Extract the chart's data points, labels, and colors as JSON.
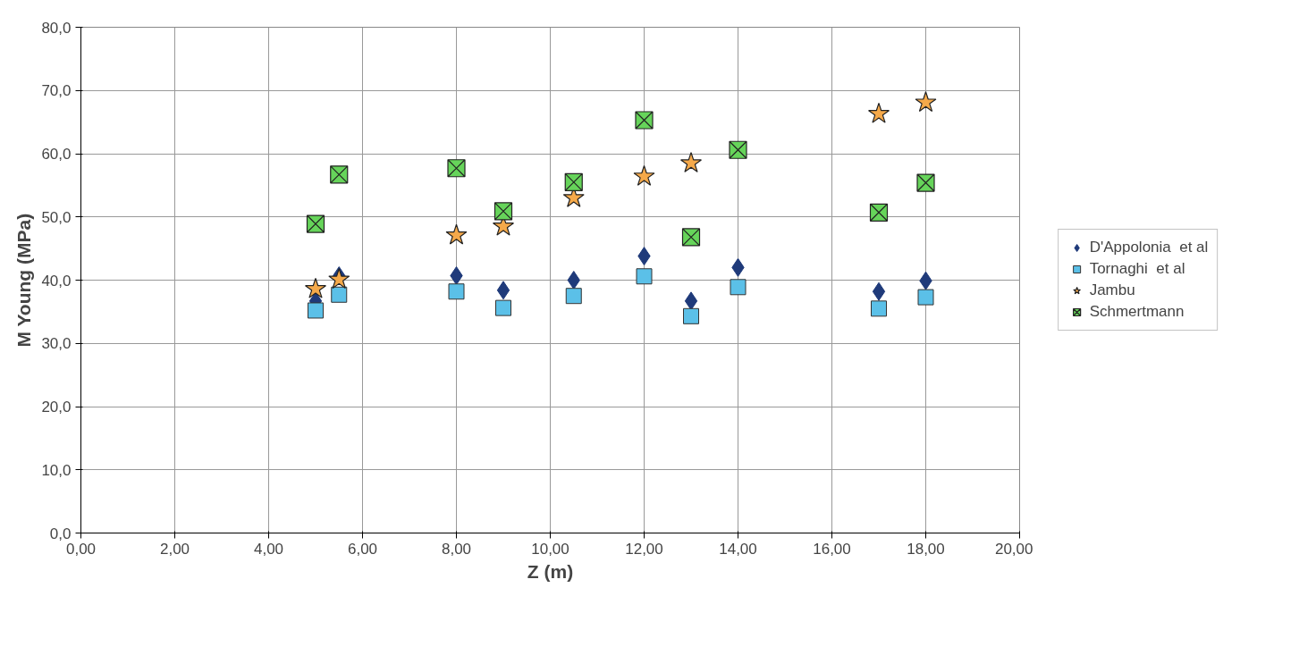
{
  "chart_data": {
    "type": "scatter",
    "xlabel": "Z (m)",
    "ylabel": "M Young (MPa)",
    "xlim": [
      0,
      20
    ],
    "ylim": [
      0,
      80
    ],
    "xticks": [
      {
        "value": 0,
        "label": "0,00"
      },
      {
        "value": 2,
        "label": "2,00"
      },
      {
        "value": 4,
        "label": "4,00"
      },
      {
        "value": 6,
        "label": "6,00"
      },
      {
        "value": 8,
        "label": "8,00"
      },
      {
        "value": 10,
        "label": "10,00"
      },
      {
        "value": 12,
        "label": "12,00"
      },
      {
        "value": 14,
        "label": "14,00"
      },
      {
        "value": 16,
        "label": "16,00"
      },
      {
        "value": 18,
        "label": "18,00"
      },
      {
        "value": 20,
        "label": "20,00"
      }
    ],
    "yticks": [
      {
        "value": 0,
        "label": "0,0"
      },
      {
        "value": 10,
        "label": "10,0"
      },
      {
        "value": 20,
        "label": "20,0"
      },
      {
        "value": 30,
        "label": "30,0"
      },
      {
        "value": 40,
        "label": "40,0"
      },
      {
        "value": 50,
        "label": "50,0"
      },
      {
        "value": 60,
        "label": "60,0"
      },
      {
        "value": 70,
        "label": "70,0"
      },
      {
        "value": 80,
        "label": "80,0"
      }
    ],
    "grid": true,
    "legend": "right",
    "series": [
      {
        "name": "D'Appolonia  et al",
        "color": "#1f3a7a",
        "marker": "diamond",
        "x": [
          5,
          5.5,
          8,
          9,
          10.5,
          12,
          13,
          14,
          17,
          18
        ],
        "values": [
          36.7,
          40.7,
          40.7,
          38.4,
          40.0,
          43.8,
          36.7,
          42.0,
          38.2,
          39.9
        ]
      },
      {
        "name": "Tornaghi  et al",
        "color": "#5bc0e8",
        "marker": "square",
        "x": [
          5,
          5.5,
          8,
          9,
          10.5,
          12,
          13,
          14,
          17,
          18
        ],
        "values": [
          35.2,
          37.7,
          38.2,
          35.6,
          37.5,
          40.6,
          34.3,
          38.9,
          35.5,
          37.3
        ]
      },
      {
        "name": "Jambu",
        "color": "#f5a94a",
        "marker": "star",
        "x": [
          5,
          5.5,
          8,
          9,
          10.5,
          12,
          13,
          17,
          18
        ],
        "values": [
          38.6,
          40.1,
          47.1,
          48.5,
          53.0,
          56.4,
          58.5,
          66.3,
          68.1
        ]
      },
      {
        "name": "Schmertmann",
        "color": "#66d45a",
        "marker": "cross",
        "x": [
          5,
          5.5,
          8,
          9,
          10.5,
          12,
          13,
          14,
          17,
          18
        ],
        "values": [
          48.9,
          56.7,
          57.7,
          50.9,
          55.5,
          65.3,
          46.8,
          60.6,
          50.7,
          55.4
        ]
      }
    ]
  }
}
